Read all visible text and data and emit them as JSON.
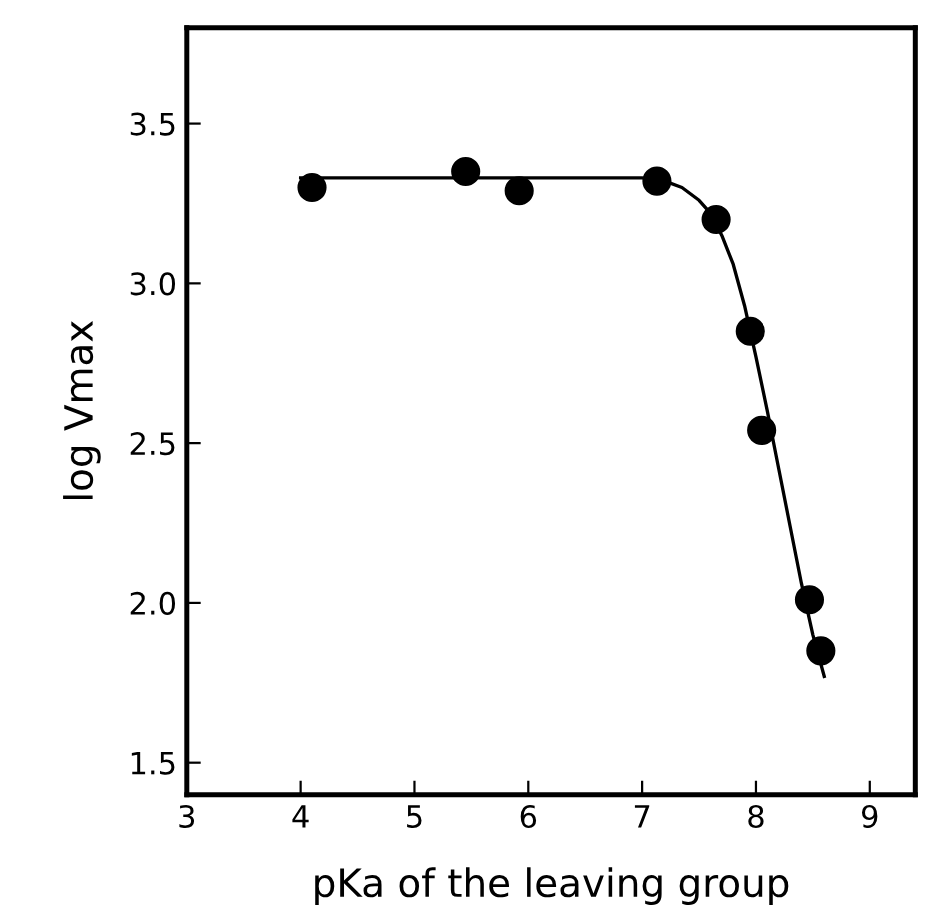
{
  "chart_data": {
    "type": "scatter",
    "xlabel": "pKa of the leaving group",
    "ylabel": "log Vmax",
    "xlim": [
      3,
      9.4
    ],
    "ylim": [
      1.4,
      3.8
    ],
    "xticks": [
      3,
      4,
      5,
      6,
      7,
      8,
      9
    ],
    "yticks": [
      1.5,
      {
        "value": 2,
        "label": "2.0"
      },
      2.5,
      {
        "value": 3,
        "label": "3.0"
      },
      3.5
    ],
    "grid": false,
    "series": [
      {
        "color": "#000000",
        "marker": "circle",
        "x": [
          4.1,
          5.45,
          5.92,
          7.13,
          7.65,
          7.95,
          8.05,
          8.47,
          8.57
        ],
        "values": [
          3.3,
          3.35,
          3.29,
          3.32,
          3.2,
          2.85,
          2.54,
          2.01,
          1.85
        ]
      },
      {
        "type": "line",
        "color": "#000000",
        "marker": "none",
        "x": [
          4.0,
          5.0,
          6.0,
          7.0,
          7.2,
          7.35,
          7.5,
          7.6,
          7.7,
          7.8,
          7.9,
          8.0,
          8.1,
          8.2,
          8.3,
          8.4,
          8.5,
          8.6
        ],
        "values": [
          3.33,
          3.33,
          3.33,
          3.33,
          3.32,
          3.3,
          3.26,
          3.22,
          3.15,
          3.06,
          2.93,
          2.77,
          2.6,
          2.42,
          2.24,
          2.06,
          1.9,
          1.77
        ]
      }
    ]
  }
}
